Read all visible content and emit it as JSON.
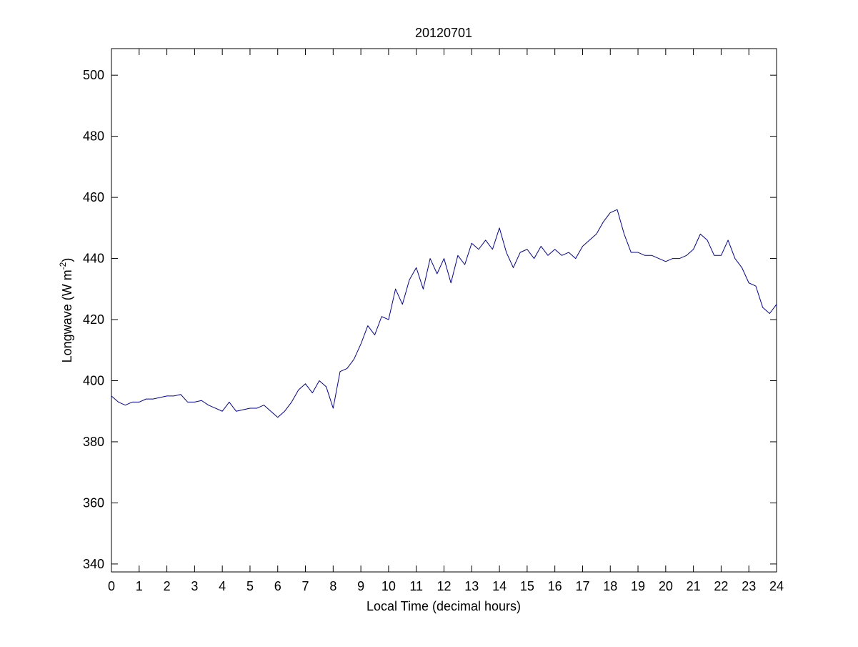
{
  "chart_data": {
    "type": "line",
    "title": "20120701",
    "x_label": "Local Time (decimal hours)",
    "y_label": [
      "Longwave (W m",
      "-2",
      ")"
    ],
    "x": [
      0,
      0.25,
      0.5,
      0.75,
      1,
      1.25,
      1.5,
      1.75,
      2,
      2.25,
      2.5,
      2.75,
      3,
      3.25,
      3.5,
      3.75,
      4,
      4.25,
      4.5,
      4.75,
      5,
      5.25,
      5.5,
      5.75,
      6,
      6.25,
      6.5,
      6.75,
      7,
      7.25,
      7.5,
      7.75,
      8,
      8.25,
      8.5,
      8.75,
      9,
      9.25,
      9.5,
      9.75,
      10,
      10.25,
      10.5,
      10.75,
      11,
      11.25,
      11.5,
      11.75,
      12,
      12.25,
      12.5,
      12.75,
      13,
      13.25,
      13.5,
      13.75,
      14,
      14.25,
      14.5,
      14.75,
      15,
      15.25,
      15.5,
      15.75,
      16,
      16.25,
      16.5,
      16.75,
      17,
      17.25,
      17.5,
      17.75,
      18,
      18.25,
      18.5,
      18.75,
      19,
      19.25,
      19.5,
      19.75,
      20,
      20.25,
      20.5,
      20.75,
      21,
      21.25,
      21.5,
      21.75,
      22,
      22.25,
      22.5,
      22.75,
      23,
      23.25,
      23.5,
      23.75,
      24
    ],
    "series": [
      {
        "color": "#0000aa",
        "values": [
          395,
          393,
          392,
          393,
          393,
          394,
          394,
          394.5,
          395,
          395,
          395.5,
          393,
          393,
          393.5,
          392,
          391,
          390,
          393,
          390,
          390.5,
          391,
          391,
          392,
          390,
          388,
          390,
          393,
          397,
          399,
          396,
          400,
          398,
          391,
          403,
          404,
          407,
          412,
          418,
          415,
          421,
          420,
          430,
          425,
          433,
          437,
          430,
          440,
          435,
          440,
          432,
          441,
          438,
          445,
          443,
          446,
          443,
          450,
          442,
          437,
          442,
          443,
          440,
          444,
          441,
          443,
          441,
          442,
          440,
          444,
          446,
          448,
          452,
          455,
          456,
          448,
          442,
          442,
          441,
          441,
          440,
          439,
          440,
          440,
          441,
          443,
          448,
          446,
          441,
          441,
          446,
          440,
          437,
          432,
          431,
          424,
          422,
          425
        ]
      }
    ],
    "xlim": [
      0,
      24
    ],
    "xticks": [
      0,
      1,
      2,
      3,
      4,
      5,
      6,
      7,
      8,
      9,
      10,
      11,
      12,
      13,
      14,
      15,
      16,
      17,
      18,
      19,
      20,
      21,
      22,
      23,
      24
    ],
    "ylim": [
      337.4,
      508.7
    ],
    "yticks": [
      340,
      360,
      380,
      400,
      420,
      440,
      460,
      480,
      500
    ],
    "grid": false
  }
}
